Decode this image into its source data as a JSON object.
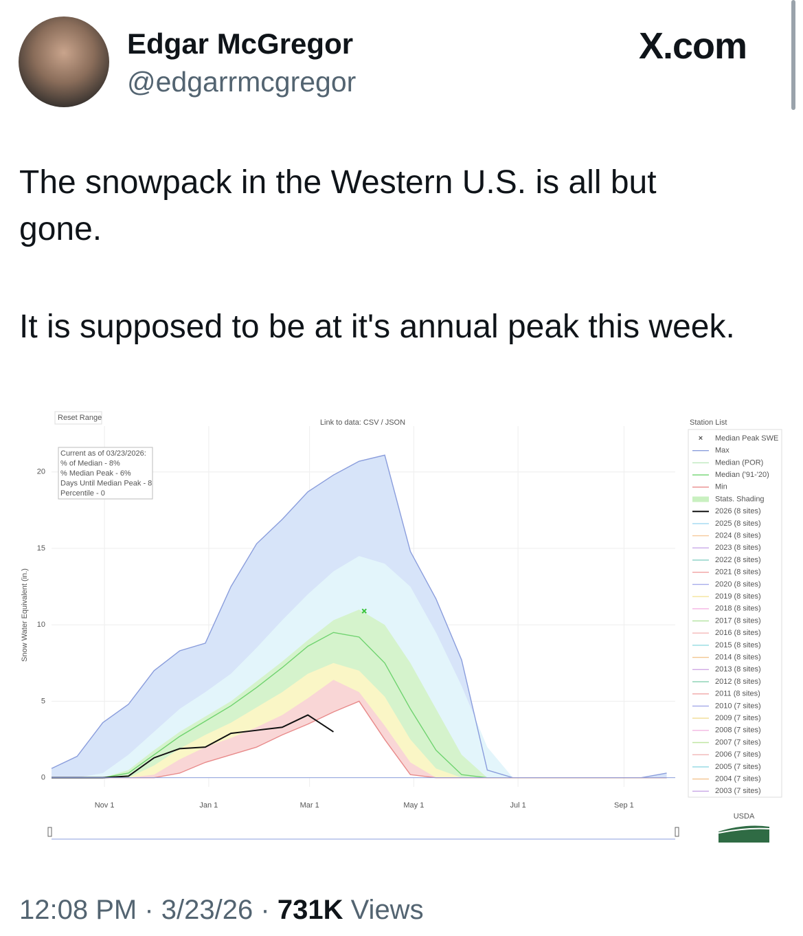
{
  "tweet": {
    "name": "Edgar McGregor",
    "handle": "@edgarrmcgregor",
    "site": "X.com",
    "paragraphs": [
      "The snowpack in the Western U.S. is all but gone.",
      "It is supposed to be at it's annual peak this week."
    ],
    "time": "12:08 PM",
    "date": "3/23/26",
    "separator": "·",
    "views_count": "731K",
    "views_label": "Views"
  },
  "chart_data": {
    "type": "area-line",
    "reset_label": "Reset Range",
    "link_label": "Link to data: CSV / JSON",
    "station_list_label": "Station List",
    "logo_text": "USDA",
    "info_box": [
      "Current as of 03/23/2026:",
      "% of Median - 8%",
      "% Median Peak - 6%",
      "Days Until Median Peak - 8",
      "Percentile - 0"
    ],
    "y_label": "Snow Water Equivalent (in.)",
    "x": [
      0,
      15,
      30,
      45,
      60,
      75,
      90,
      105,
      120,
      135,
      150,
      165,
      180,
      195,
      210,
      225,
      240,
      255,
      270,
      285,
      300,
      315,
      330,
      345,
      360
    ],
    "xlim": [
      0,
      365
    ],
    "xticks": [
      {
        "value": 31,
        "label": "Nov 1"
      },
      {
        "value": 92,
        "label": "Jan 1"
      },
      {
        "value": 151,
        "label": "Mar 1"
      },
      {
        "value": 212,
        "label": "May 1"
      },
      {
        "value": 273,
        "label": "Jul 1"
      },
      {
        "value": 335,
        "label": "Sep 1"
      }
    ],
    "ylim": [
      -0.6,
      23
    ],
    "yticks": [
      0,
      5,
      10,
      15,
      20
    ],
    "grid": true,
    "series": [
      {
        "name": "Max",
        "color": "#8a9ddc",
        "fill": "#d7e4f9",
        "values": [
          0.6,
          1.4,
          3.6,
          4.8,
          7.0,
          8.3,
          8.8,
          12.5,
          15.3,
          16.9,
          18.7,
          19.8,
          20.7,
          21.1,
          14.8,
          11.7,
          7.7,
          0.5,
          0,
          0,
          0,
          0,
          0,
          0,
          0.3
        ]
      },
      {
        "name": "Median ('91-'20)",
        "color": "#6fd36f",
        "values": [
          0,
          0,
          0,
          0.3,
          1.5,
          2.7,
          3.7,
          4.7,
          5.9,
          7.2,
          8.6,
          9.5,
          9.2,
          7.5,
          4.5,
          1.8,
          0.2,
          0,
          0,
          0,
          0,
          0,
          0,
          0,
          0
        ]
      },
      {
        "name": "Min",
        "color": "#e88a8a",
        "fill": "#ffffff",
        "values": [
          0,
          0,
          0,
          0,
          0,
          0.3,
          1.0,
          1.5,
          2.0,
          2.8,
          3.5,
          4.3,
          5.0,
          2.5,
          0.2,
          0,
          0,
          0,
          0,
          0,
          0,
          0,
          0,
          0,
          0
        ]
      },
      {
        "name": "2026 (8 sites)",
        "color": "#111111",
        "values": [
          0,
          0,
          0,
          0.1,
          1.3,
          1.9,
          2.0,
          2.9,
          3.1,
          3.3,
          4.1,
          3.0,
          null,
          null,
          null,
          null,
          null,
          null,
          null,
          null,
          null,
          null,
          null,
          null,
          null
        ]
      }
    ],
    "shading": {
      "name": "Stats. Shading",
      "color": "#c9f0c0",
      "layers": [
        {
          "color": "#e3f5fb",
          "values": [
            0,
            0,
            0.3,
            1.5,
            3,
            4.5,
            5.6,
            6.8,
            8.5,
            10.3,
            12,
            13.5,
            14.5,
            14,
            12.5,
            9.5,
            6,
            2,
            0,
            0,
            0,
            0,
            0,
            0,
            0
          ]
        },
        {
          "color": "#d5f3cc",
          "values": [
            0,
            0,
            0,
            0.5,
            1.8,
            3,
            4,
            5,
            6.3,
            7.6,
            9,
            10.3,
            11,
            10,
            7.5,
            4.5,
            1.5,
            0,
            0,
            0,
            0,
            0,
            0,
            0,
            0
          ]
        },
        {
          "color": "#faf6c6",
          "values": [
            0,
            0,
            0,
            0,
            0.8,
            1.9,
            2.8,
            3.6,
            4.6,
            5.6,
            6.8,
            7.5,
            7,
            5.3,
            2.5,
            0.6,
            0,
            0,
            0,
            0,
            0,
            0,
            0,
            0,
            0
          ]
        },
        {
          "color": "#f9d6d6",
          "values": [
            0,
            0,
            0,
            0,
            0.2,
            1.2,
            2,
            2.6,
            3.3,
            4.1,
            5.2,
            6.4,
            5.6,
            3.4,
            1,
            0,
            0,
            0,
            0,
            0,
            0,
            0,
            0,
            0,
            0
          ]
        }
      ]
    },
    "median_peak": {
      "name": "Median Peak SWE",
      "color": "#3cc43c",
      "x": 183,
      "y": 10.9
    },
    "inactive_legend": [
      {
        "name": "Median (POR)",
        "color": "#bde8bd"
      },
      {
        "name": "2025 (8 sites)",
        "color": "#9fd8f0"
      },
      {
        "name": "2024 (8 sites)",
        "color": "#f6c99a"
      },
      {
        "name": "2023 (8 sites)",
        "color": "#c9a9e8"
      },
      {
        "name": "2022 (8 sites)",
        "color": "#8fd3c8"
      },
      {
        "name": "2021 (8 sites)",
        "color": "#f0a0a0"
      },
      {
        "name": "2020 (8 sites)",
        "color": "#a7acec"
      },
      {
        "name": "2019 (8 sites)",
        "color": "#f3e49a"
      },
      {
        "name": "2018 (8 sites)",
        "color": "#f5b3e3"
      },
      {
        "name": "2017 (8 sites)",
        "color": "#b7e6a6"
      },
      {
        "name": "2016 (8 sites)",
        "color": "#f4b8b8"
      },
      {
        "name": "2015 (8 sites)",
        "color": "#92dbe0"
      },
      {
        "name": "2014 (8 sites)",
        "color": "#f2c58e"
      },
      {
        "name": "2013 (8 sites)",
        "color": "#cfa8e4"
      },
      {
        "name": "2012 (8 sites)",
        "color": "#8ed4b6"
      },
      {
        "name": "2011 (8 sites)",
        "color": "#f0a6a6"
      },
      {
        "name": "2010 (7 sites)",
        "color": "#a3a8e8"
      },
      {
        "name": "2009 (7 sites)",
        "color": "#f0dc92"
      },
      {
        "name": "2008 (7 sites)",
        "color": "#f3b5e0"
      },
      {
        "name": "2007 (7 sites)",
        "color": "#c0e6a2"
      },
      {
        "name": "2006 (7 sites)",
        "color": "#f1b5b5"
      },
      {
        "name": "2005 (7 sites)",
        "color": "#8fd8e2"
      },
      {
        "name": "2004 (7 sites)",
        "color": "#f3c28e"
      },
      {
        "name": "2003 (7 sites)",
        "color": "#c9a6e6"
      }
    ]
  }
}
